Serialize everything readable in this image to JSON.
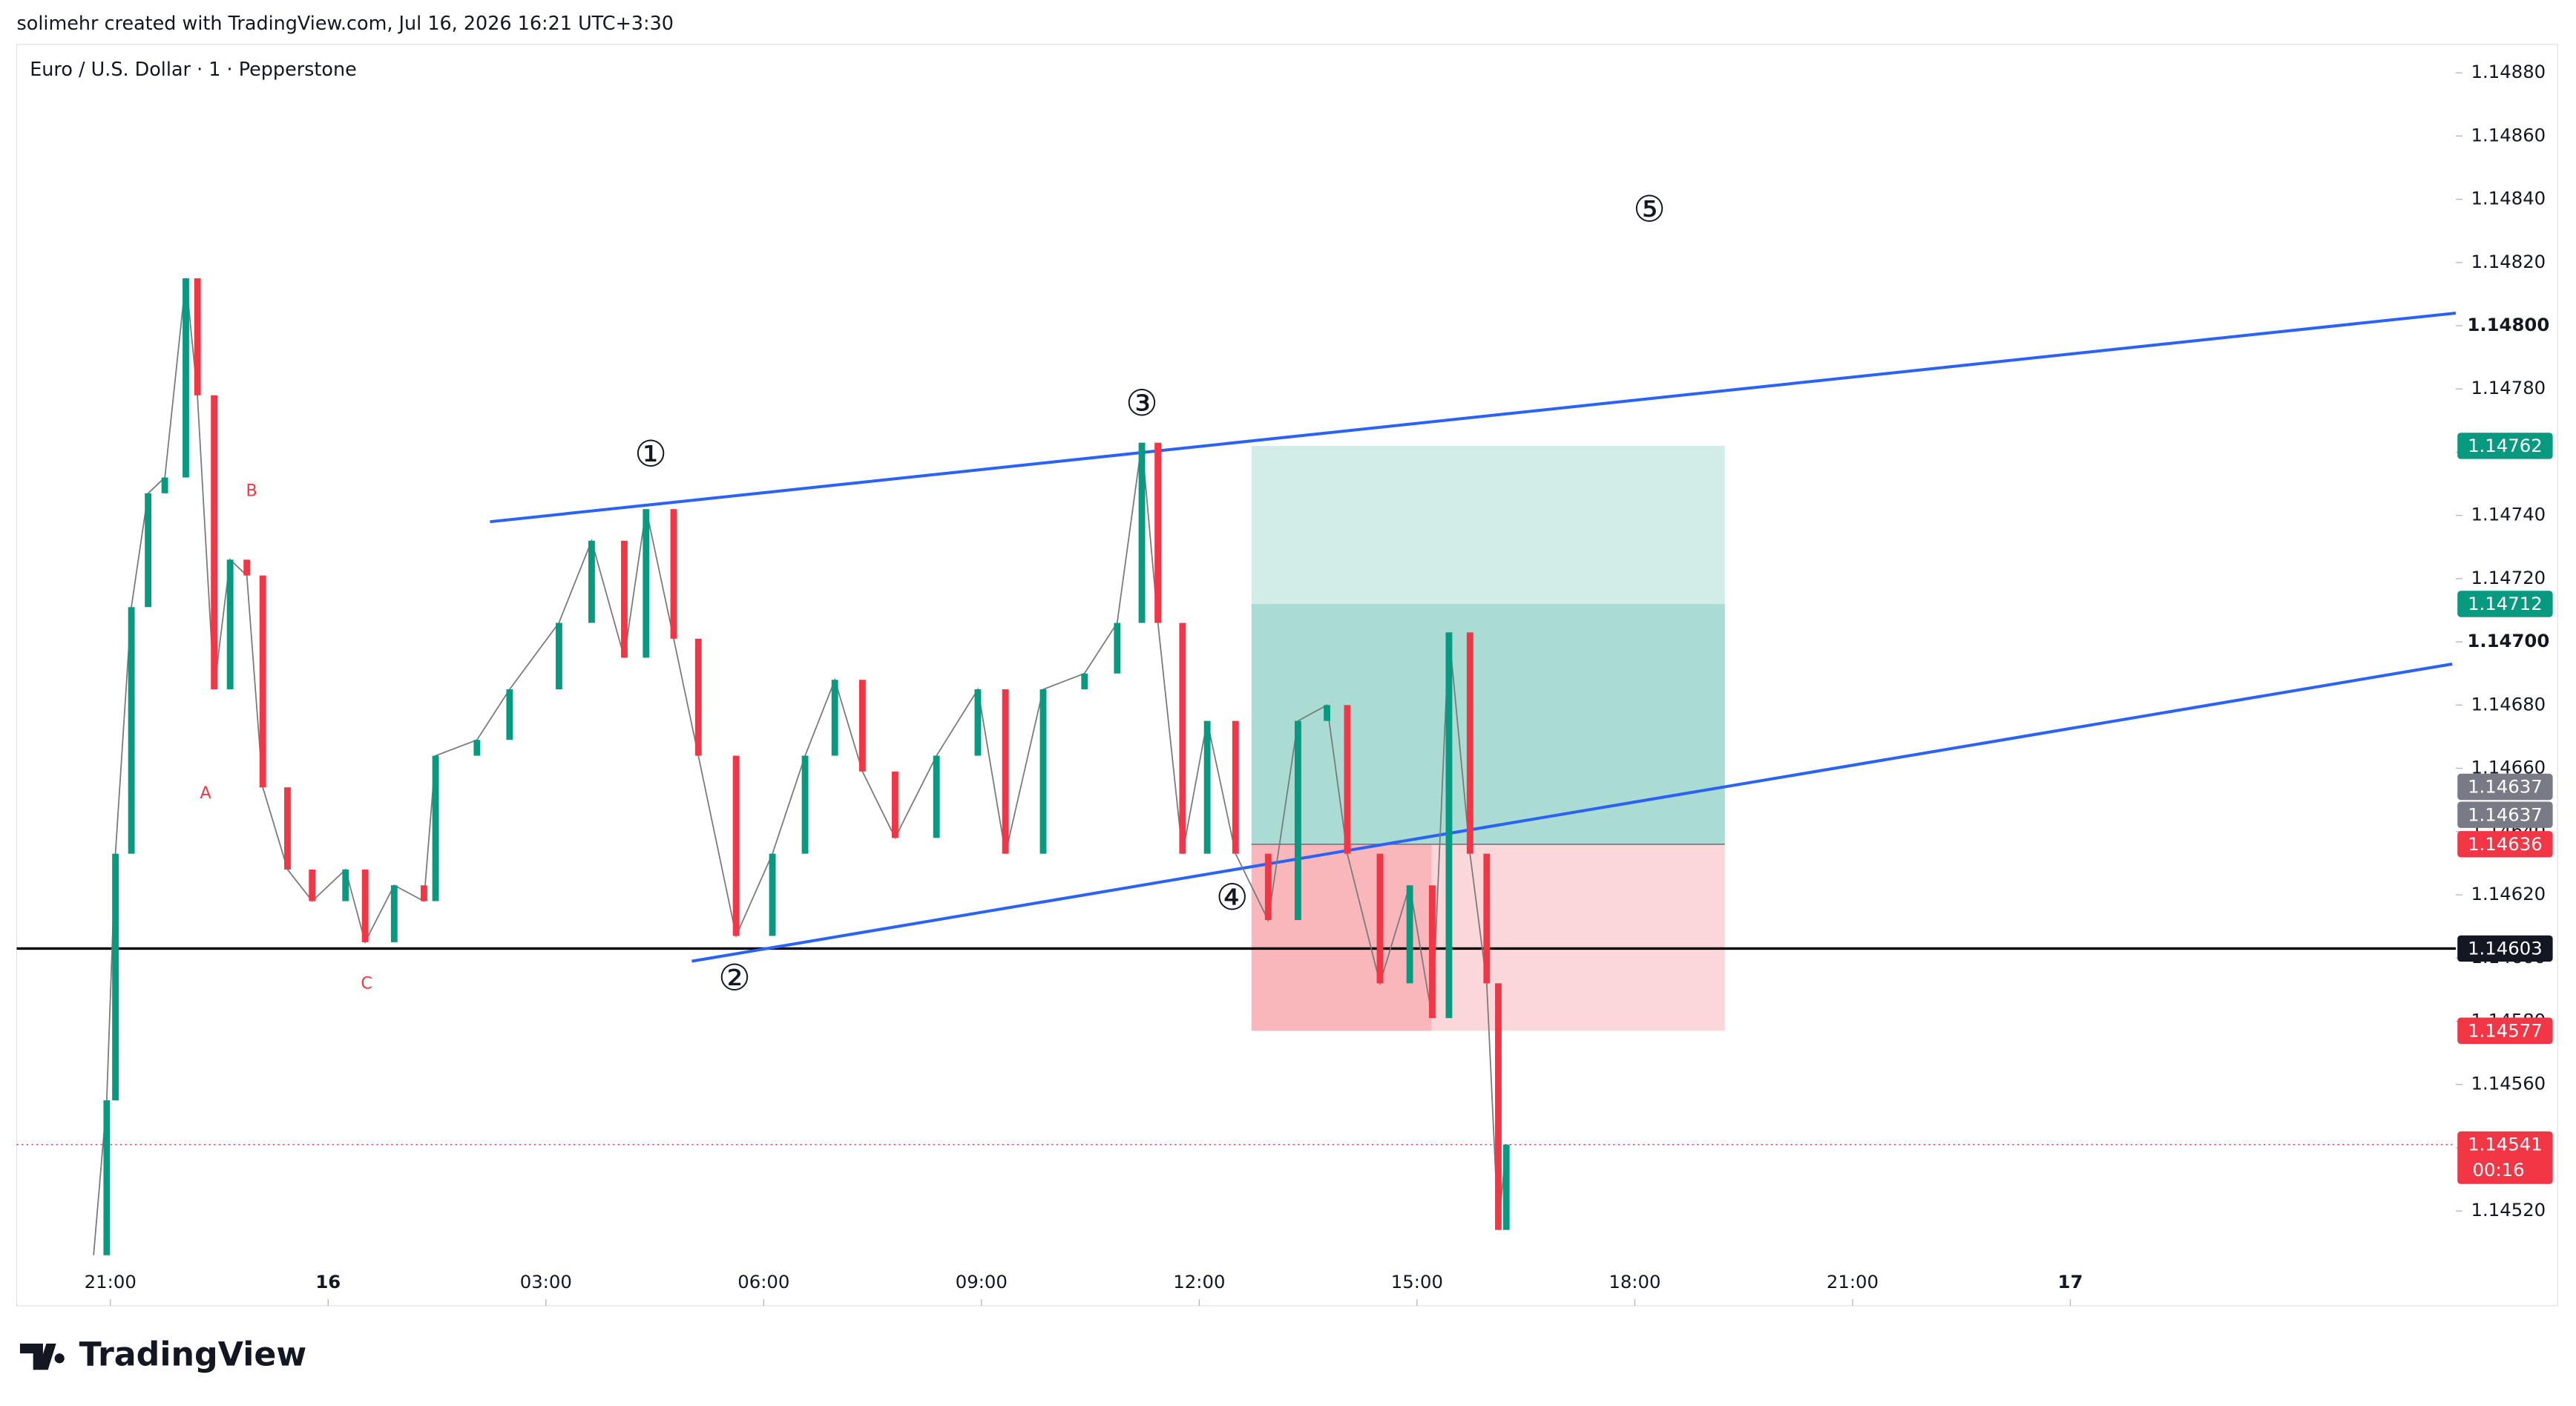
{
  "chart_data": {
    "type": "candlestick",
    "header": "solimehr created with TradingView.com, Jul 16, 2026 16:21 UTC+3:30",
    "title": "Euro / U.S. Dollar · 1 · Pepperstone",
    "logo": "TradingView",
    "x": [
      -0.23,
      -0.05,
      0.07,
      0.29,
      0.52,
      0.75,
      1.04,
      1.2,
      1.43,
      1.65,
      1.88,
      2.1,
      2.44,
      2.78,
      3.24,
      3.51,
      3.91,
      4.32,
      4.48,
      5.05,
      5.5,
      6.18,
      6.63,
      7.08,
      7.38,
      7.76,
      8.1,
      8.62,
      9.12,
      9.57,
      9.98,
      10.36,
      10.81,
      11.38,
      11.95,
      12.33,
      12.85,
      13.42,
      13.87,
      14.21,
      14.43,
      14.77,
      15.11,
      15.5,
      15.95,
      16.36,
      16.76,
      17.04,
      17.49,
      17.9,
      18.21,
      18.44,
      18.73,
      18.96,
      19.12,
      19.23
    ],
    "values": [
      1.14506,
      1.14555,
      1.14633,
      1.14711,
      1.14747,
      1.14752,
      1.14815,
      1.14778,
      1.14685,
      1.14726,
      1.14721,
      1.14654,
      1.14628,
      1.14618,
      1.14628,
      1.14605,
      1.14623,
      1.14618,
      1.14664,
      1.14669,
      1.14685,
      1.14706,
      1.14732,
      1.14695,
      1.14742,
      1.14701,
      1.14664,
      1.14607,
      1.14633,
      1.14664,
      1.14688,
      1.14659,
      1.14638,
      1.14664,
      1.14685,
      1.14633,
      1.14685,
      1.1469,
      1.14706,
      1.14763,
      1.14706,
      1.14633,
      1.14675,
      1.14633,
      1.14612,
      1.14675,
      1.1468,
      1.14633,
      1.14592,
      1.14623,
      1.14581,
      1.14703,
      1.14633,
      1.14592,
      1.14514,
      1.14541
    ],
    "up_color": "#089981",
    "down_color": "#f23645",
    "xlim": [
      -1.29,
      32.31
    ],
    "xticks": [
      {
        "value": 0,
        "label": "21:00"
      },
      {
        "value": 3,
        "label": "16"
      },
      {
        "value": 6,
        "label": "03:00"
      },
      {
        "value": 9,
        "label": "06:00"
      },
      {
        "value": 12,
        "label": "09:00"
      },
      {
        "value": 15,
        "label": "12:00"
      },
      {
        "value": 18,
        "label": "15:00"
      },
      {
        "value": 21,
        "label": "18:00"
      },
      {
        "value": 24,
        "label": "21:00"
      },
      {
        "value": 27,
        "label": "17"
      }
    ],
    "ylim": [
      1.1449,
      1.14889
    ],
    "yticks": [
      {
        "value": 1.1452,
        "label": "1.14520"
      },
      {
        "value": 1.1454,
        "label": "1.14540"
      },
      {
        "value": 1.1456,
        "label": "1.14560"
      },
      {
        "value": 1.1458,
        "label": "1.14580"
      },
      {
        "value": 1.146,
        "label": "1.14600"
      },
      {
        "value": 1.1462,
        "label": "1.14620"
      },
      {
        "value": 1.1464,
        "label": "1.14640"
      },
      {
        "value": 1.1466,
        "label": "1.14660"
      },
      {
        "value": 1.1468,
        "label": "1.14680"
      },
      {
        "value": 1.147,
        "label": "1.14700",
        "bold": true
      },
      {
        "value": 1.1472,
        "label": "1.14720"
      },
      {
        "value": 1.1474,
        "label": "1.14740"
      },
      {
        "value": 1.1476,
        "label": "1.14760"
      },
      {
        "value": 1.1478,
        "label": "1.14780"
      },
      {
        "value": 1.148,
        "label": "1.14800",
        "bold": true
      },
      {
        "value": 1.1482,
        "label": "1.14820"
      },
      {
        "value": 1.1484,
        "label": "1.14840"
      },
      {
        "value": 1.1486,
        "label": "1.14860"
      },
      {
        "value": 1.1488,
        "label": "1.14880"
      }
    ],
    "grid": false,
    "trend_lines": [
      {
        "x": [
          5.23,
          32.31
        ],
        "y": [
          1.14738,
          1.14804
        ],
        "color": "#2962ff"
      },
      {
        "x": [
          8.01,
          32.26
        ],
        "y": [
          1.14599,
          1.14693
        ],
        "color": "#2962ff"
      }
    ],
    "horizontal_line": {
      "value": 1.14603,
      "color": "#000000"
    },
    "position": {
      "x": [
        15.72,
        22.24
      ],
      "entry": 1.14636,
      "target": 1.14762,
      "stop": 1.14577,
      "reached": 1.14712,
      "stop_shade_end": 18.2
    },
    "price_labels": [
      {
        "value": 1.14762,
        "color": "#089981"
      },
      {
        "value": 1.14712,
        "color": "#089981"
      },
      {
        "value": 1.14637,
        "color": "#787b86"
      },
      {
        "value": 1.14637,
        "color": "#787b86"
      },
      {
        "value": 1.14636,
        "color": "#f23645"
      },
      {
        "value": 1.14603,
        "color": "#131722"
      },
      {
        "value": 1.14577,
        "color": "#f23645"
      },
      {
        "value": 1.14541,
        "color": "#f23645",
        "countdown": "00:16"
      }
    ],
    "waves": [
      "①",
      "②",
      "③",
      "④",
      "⑤"
    ],
    "corrections": [
      "A",
      "B",
      "C"
    ]
  }
}
